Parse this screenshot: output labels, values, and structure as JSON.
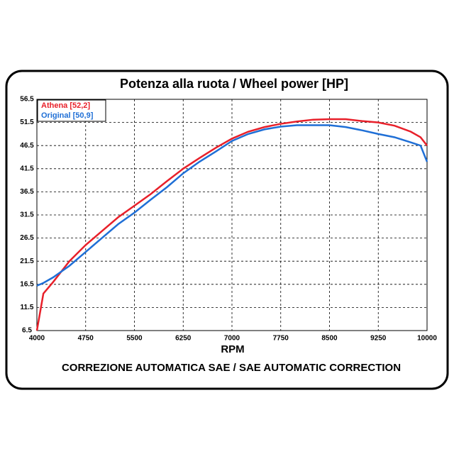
{
  "chart_data": {
    "type": "line",
    "title": "Potenza alla ruota / Wheel power [HP]",
    "x_label": "RPM",
    "footer": "CORREZIONE AUTOMATICA SAE / SAE AUTOMATIC CORRECTION",
    "x": [
      4000,
      4100,
      4250,
      4500,
      4750,
      5000,
      5250,
      5500,
      5750,
      6000,
      6250,
      6500,
      6750,
      7000,
      7250,
      7500,
      7750,
      8000,
      8250,
      8500,
      8750,
      9000,
      9250,
      9500,
      9750,
      9900,
      10000
    ],
    "series": [
      {
        "name": "Athena [52,2]",
        "color": "#e8202a",
        "values": [
          6.5,
          14.5,
          17,
          21.5,
          25,
          28,
          31,
          33.5,
          36,
          38.8,
          41.5,
          43.8,
          46,
          48,
          49.5,
          50.5,
          51.2,
          51.7,
          52.1,
          52.2,
          52.2,
          51.8,
          51.5,
          50.8,
          49.5,
          48.3,
          46.5
        ]
      },
      {
        "name": "Original [50,9]",
        "color": "#1f6fd6",
        "values": [
          16.2,
          16.8,
          18,
          20.5,
          23.5,
          26.5,
          29.5,
          32,
          34.8,
          37.5,
          40.5,
          43,
          45.2,
          47.5,
          49,
          50,
          50.6,
          50.9,
          50.9,
          50.9,
          50.5,
          49.8,
          49,
          48.3,
          47.2,
          46.5,
          43
        ]
      }
    ],
    "xlim": [
      4000,
      10000
    ],
    "xticks": [
      4000,
      4750,
      5500,
      6250,
      7000,
      7750,
      8500,
      9250,
      10000
    ],
    "ylim": [
      6.5,
      56.5
    ],
    "yticks": [
      6.5,
      11.5,
      16.5,
      21.5,
      26.5,
      31.5,
      36.5,
      41.5,
      46.5,
      51.5,
      56.5
    ],
    "grid": true,
    "legend": "upper-left"
  }
}
